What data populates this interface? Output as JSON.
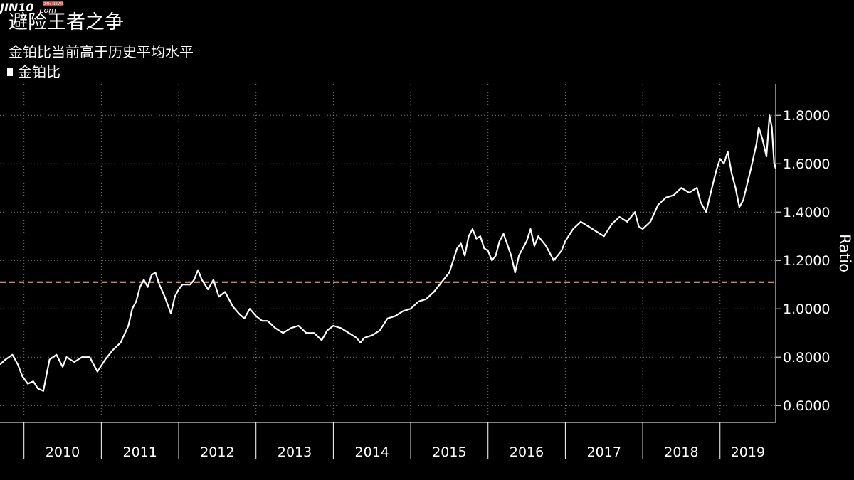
{
  "title": "避险王者之争",
  "subtitle": "金铂比当前高于历史平均水平",
  "legend": {
    "label": "金铂比"
  },
  "watermark": {
    "text": "JIN10",
    "suffix": ".com",
    "tag": "24h NEWS"
  },
  "colors": {
    "line": "#ffffff",
    "average": "#f4bd8f",
    "grid": "#7a7a7a",
    "background": "#000000"
  },
  "chart_data": {
    "type": "line",
    "title": "避险王者之争",
    "subtitle": "金铂比当前高于历史平均水平",
    "ylabel": "Ratio",
    "xlabel": "",
    "ylim": [
      0.53,
      1.93
    ],
    "xlim": [
      2009.69,
      2019.72
    ],
    "yticks": [
      {
        "value": 0.6,
        "label": "0.6000"
      },
      {
        "value": 0.8,
        "label": "0.8000"
      },
      {
        "value": 1.0,
        "label": "1.0000"
      },
      {
        "value": 1.2,
        "label": "1.2000"
      },
      {
        "value": 1.4,
        "label": "1.4000"
      },
      {
        "value": 1.6,
        "label": "1.6000"
      },
      {
        "value": 1.8,
        "label": "1.8000"
      }
    ],
    "xticks": [
      {
        "value": 2010,
        "label": "2010"
      },
      {
        "value": 2011,
        "label": "2011"
      },
      {
        "value": 2012,
        "label": "2012"
      },
      {
        "value": 2013,
        "label": "2013"
      },
      {
        "value": 2014,
        "label": "2014"
      },
      {
        "value": 2015,
        "label": "2015"
      },
      {
        "value": 2016,
        "label": "2016"
      },
      {
        "value": 2017,
        "label": "2017"
      },
      {
        "value": 2018,
        "label": "2018"
      },
      {
        "value": 2019,
        "label": "2019"
      }
    ],
    "average_line": {
      "value": 1.11,
      "style": "dashed"
    },
    "grid": true,
    "series": [
      {
        "name": "金铂比",
        "points": [
          [
            2009.69,
            0.77
          ],
          [
            2009.76,
            0.79
          ],
          [
            2009.85,
            0.81
          ],
          [
            2009.92,
            0.77
          ],
          [
            2009.98,
            0.72
          ],
          [
            2010.05,
            0.69
          ],
          [
            2010.12,
            0.7
          ],
          [
            2010.18,
            0.67
          ],
          [
            2010.25,
            0.66
          ],
          [
            2010.33,
            0.79
          ],
          [
            2010.42,
            0.81
          ],
          [
            2010.5,
            0.76
          ],
          [
            2010.55,
            0.8
          ],
          [
            2010.65,
            0.78
          ],
          [
            2010.75,
            0.8
          ],
          [
            2010.85,
            0.8
          ],
          [
            2010.95,
            0.74
          ],
          [
            2011.05,
            0.79
          ],
          [
            2011.15,
            0.83
          ],
          [
            2011.25,
            0.86
          ],
          [
            2011.35,
            0.93
          ],
          [
            2011.4,
            1.0
          ],
          [
            2011.45,
            1.03
          ],
          [
            2011.5,
            1.09
          ],
          [
            2011.55,
            1.12
          ],
          [
            2011.6,
            1.09
          ],
          [
            2011.65,
            1.14
          ],
          [
            2011.7,
            1.15
          ],
          [
            2011.75,
            1.1
          ],
          [
            2011.82,
            1.05
          ],
          [
            2011.9,
            0.98
          ],
          [
            2011.95,
            1.05
          ],
          [
            2012.0,
            1.08
          ],
          [
            2012.05,
            1.1
          ],
          [
            2012.15,
            1.1
          ],
          [
            2012.2,
            1.12
          ],
          [
            2012.25,
            1.16
          ],
          [
            2012.3,
            1.12
          ],
          [
            2012.38,
            1.08
          ],
          [
            2012.45,
            1.12
          ],
          [
            2012.52,
            1.05
          ],
          [
            2012.6,
            1.07
          ],
          [
            2012.7,
            1.01
          ],
          [
            2012.78,
            0.98
          ],
          [
            2012.85,
            0.96
          ],
          [
            2012.92,
            1.0
          ],
          [
            2013.0,
            0.97
          ],
          [
            2013.08,
            0.95
          ],
          [
            2013.15,
            0.95
          ],
          [
            2013.25,
            0.92
          ],
          [
            2013.35,
            0.9
          ],
          [
            2013.45,
            0.92
          ],
          [
            2013.55,
            0.93
          ],
          [
            2013.65,
            0.9
          ],
          [
            2013.75,
            0.9
          ],
          [
            2013.85,
            0.87
          ],
          [
            2013.92,
            0.91
          ],
          [
            2014.0,
            0.93
          ],
          [
            2014.1,
            0.92
          ],
          [
            2014.2,
            0.9
          ],
          [
            2014.3,
            0.88
          ],
          [
            2014.35,
            0.86
          ],
          [
            2014.4,
            0.88
          ],
          [
            2014.5,
            0.89
          ],
          [
            2014.6,
            0.91
          ],
          [
            2014.7,
            0.96
          ],
          [
            2014.8,
            0.97
          ],
          [
            2014.9,
            0.99
          ],
          [
            2015.0,
            1.0
          ],
          [
            2015.1,
            1.03
          ],
          [
            2015.2,
            1.04
          ],
          [
            2015.3,
            1.07
          ],
          [
            2015.4,
            1.11
          ],
          [
            2015.5,
            1.15
          ],
          [
            2015.55,
            1.2
          ],
          [
            2015.6,
            1.25
          ],
          [
            2015.65,
            1.27
          ],
          [
            2015.7,
            1.22
          ],
          [
            2015.75,
            1.3
          ],
          [
            2015.8,
            1.33
          ],
          [
            2015.85,
            1.29
          ],
          [
            2015.9,
            1.3
          ],
          [
            2015.95,
            1.25
          ],
          [
            2016.0,
            1.24
          ],
          [
            2016.05,
            1.2
          ],
          [
            2016.1,
            1.22
          ],
          [
            2016.15,
            1.28
          ],
          [
            2016.2,
            1.31
          ],
          [
            2016.3,
            1.22
          ],
          [
            2016.35,
            1.15
          ],
          [
            2016.4,
            1.22
          ],
          [
            2016.5,
            1.28
          ],
          [
            2016.55,
            1.33
          ],
          [
            2016.6,
            1.26
          ],
          [
            2016.65,
            1.3
          ],
          [
            2016.75,
            1.26
          ],
          [
            2016.85,
            1.2
          ],
          [
            2016.95,
            1.24
          ],
          [
            2017.0,
            1.28
          ],
          [
            2017.1,
            1.33
          ],
          [
            2017.2,
            1.36
          ],
          [
            2017.3,
            1.34
          ],
          [
            2017.4,
            1.32
          ],
          [
            2017.5,
            1.3
          ],
          [
            2017.6,
            1.35
          ],
          [
            2017.7,
            1.38
          ],
          [
            2017.8,
            1.36
          ],
          [
            2017.9,
            1.4
          ],
          [
            2017.95,
            1.34
          ],
          [
            2018.0,
            1.33
          ],
          [
            2018.1,
            1.36
          ],
          [
            2018.2,
            1.43
          ],
          [
            2018.3,
            1.46
          ],
          [
            2018.4,
            1.47
          ],
          [
            2018.5,
            1.5
          ],
          [
            2018.6,
            1.48
          ],
          [
            2018.7,
            1.5
          ],
          [
            2018.75,
            1.44
          ],
          [
            2018.82,
            1.4
          ],
          [
            2018.88,
            1.48
          ],
          [
            2018.95,
            1.57
          ],
          [
            2019.0,
            1.62
          ],
          [
            2019.05,
            1.6
          ],
          [
            2019.1,
            1.65
          ],
          [
            2019.15,
            1.56
          ],
          [
            2019.2,
            1.5
          ],
          [
            2019.25,
            1.42
          ],
          [
            2019.3,
            1.45
          ],
          [
            2019.4,
            1.58
          ],
          [
            2019.47,
            1.68
          ],
          [
            2019.5,
            1.75
          ],
          [
            2019.55,
            1.7
          ],
          [
            2019.6,
            1.63
          ],
          [
            2019.64,
            1.8
          ],
          [
            2019.67,
            1.75
          ],
          [
            2019.7,
            1.6
          ],
          [
            2019.72,
            1.58
          ]
        ]
      }
    ]
  }
}
